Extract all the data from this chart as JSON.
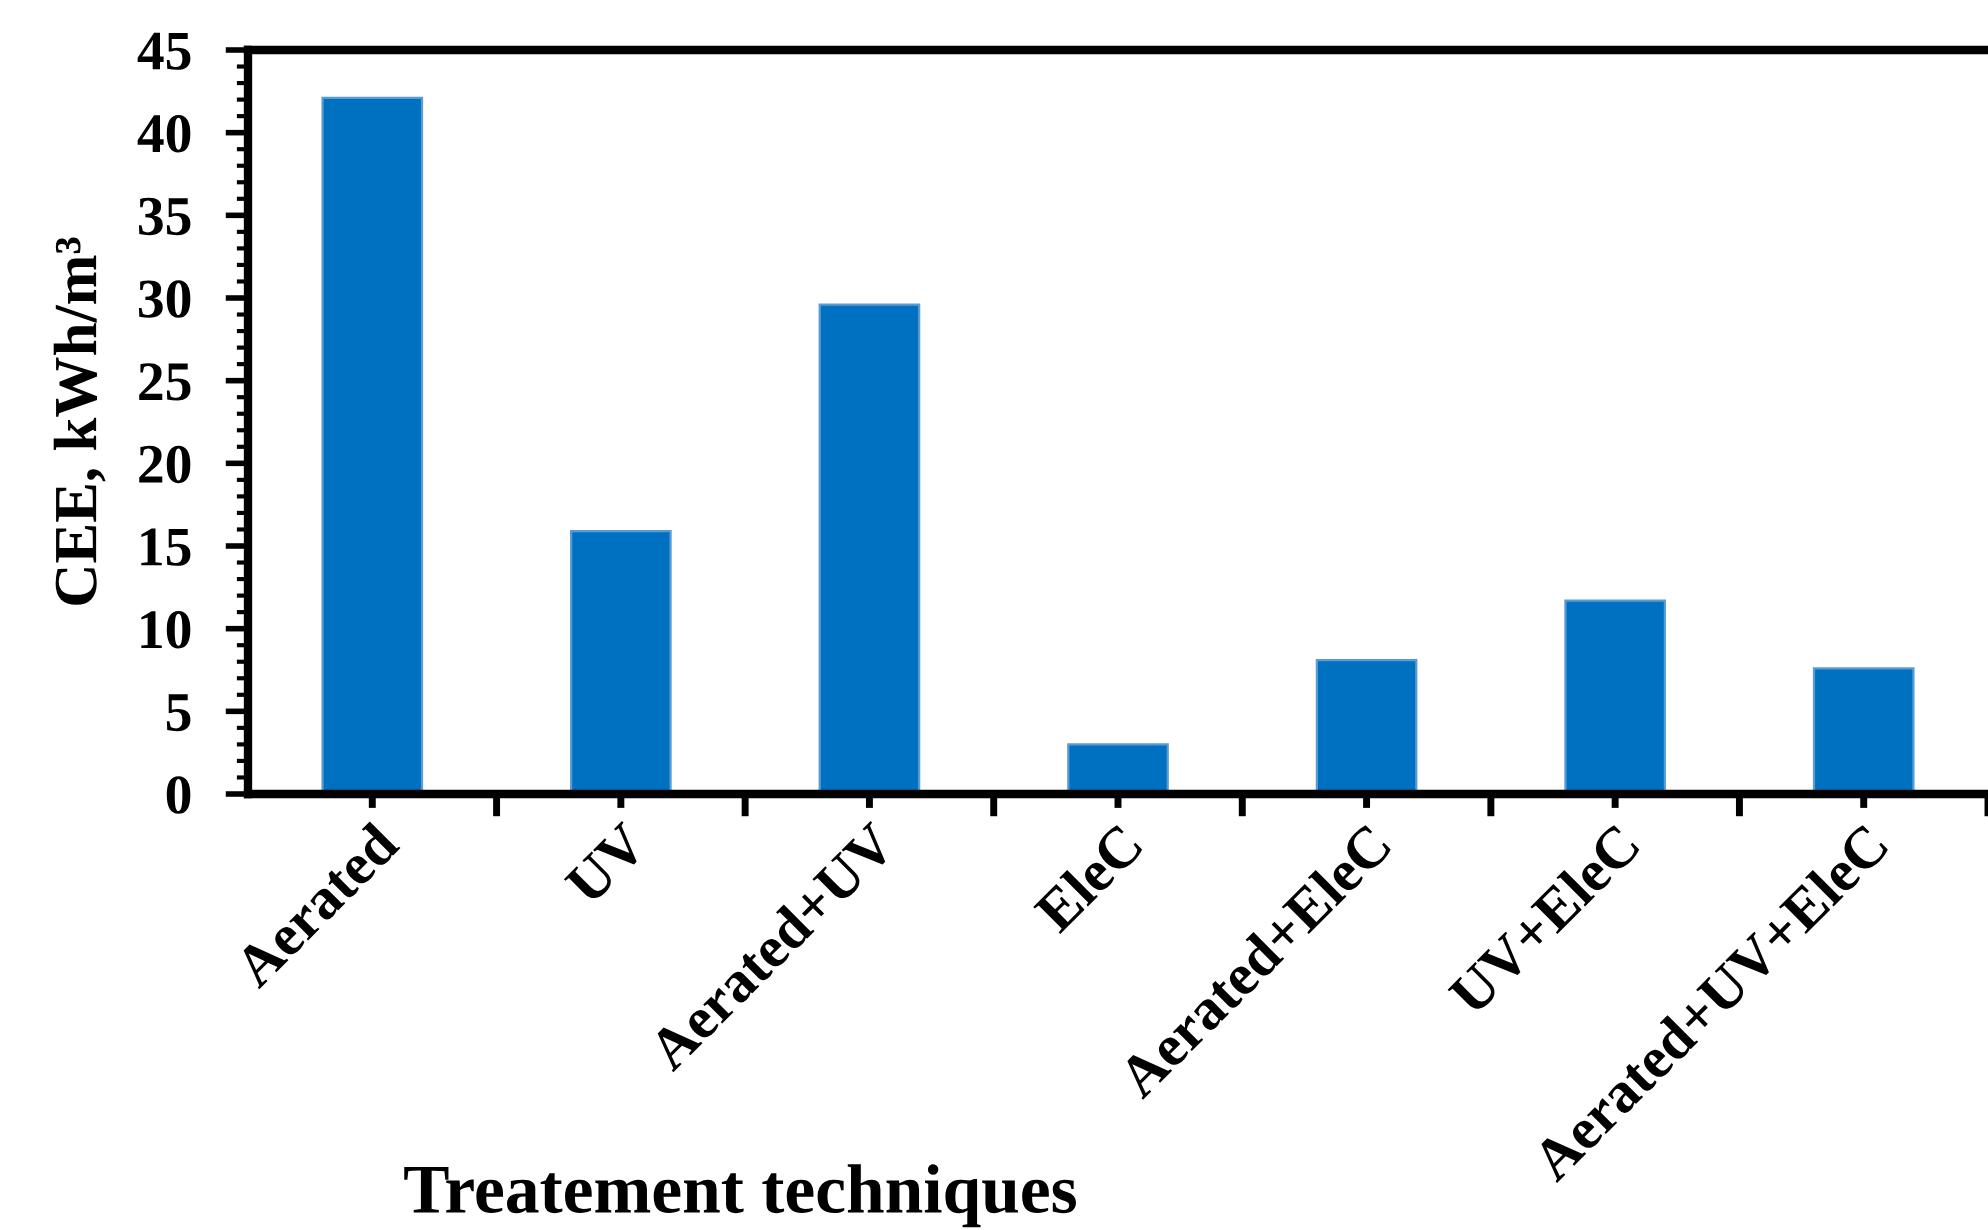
{
  "chart_data": {
    "type": "bar",
    "xlabel": "Treatement techniques",
    "ylabel": "CEE, kWh/m³",
    "categories": [
      "Aerated",
      "UV",
      "Aerated+UV",
      "EleC",
      "Aerated+EleC",
      "UV+EleC",
      "Aerated+UV+EleC"
    ],
    "values": [
      42.1,
      15.9,
      29.6,
      3.0,
      8.1,
      11.7,
      7.6
    ],
    "color": "#0070c0",
    "ylim": [
      0,
      45
    ],
    "yticks": [
      0,
      5,
      10,
      15,
      20,
      25,
      30,
      35,
      40,
      45
    ]
  }
}
